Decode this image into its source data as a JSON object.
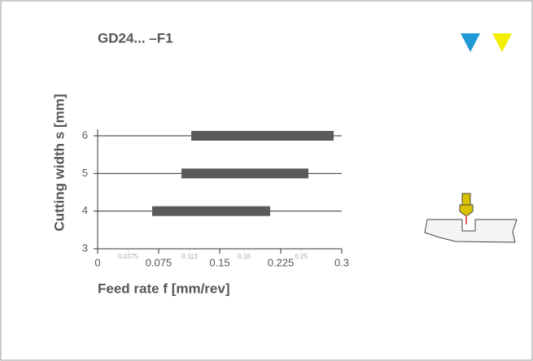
{
  "chart_data": {
    "type": "range-bar",
    "title": "GD24... –F1",
    "x_label": "Feed rate f [mm/rev]",
    "y_label": "Cutting width s [mm]",
    "y": [
      4,
      5,
      6
    ],
    "values": [
      [
        0.067,
        0.212
      ],
      [
        0.103,
        0.259
      ],
      [
        0.115,
        0.29
      ]
    ],
    "color": "#5a5a5a",
    "xlim": [
      0,
      0.3
    ],
    "ylim": [
      3,
      6
    ],
    "xticks": [
      0,
      0.075,
      0.15,
      0.225,
      0.3
    ],
    "xminorticks": [
      0.0375,
      0.113,
      0.18,
      0.25
    ],
    "yticks": [
      3,
      4,
      5,
      6
    ],
    "grid": true
  }
}
